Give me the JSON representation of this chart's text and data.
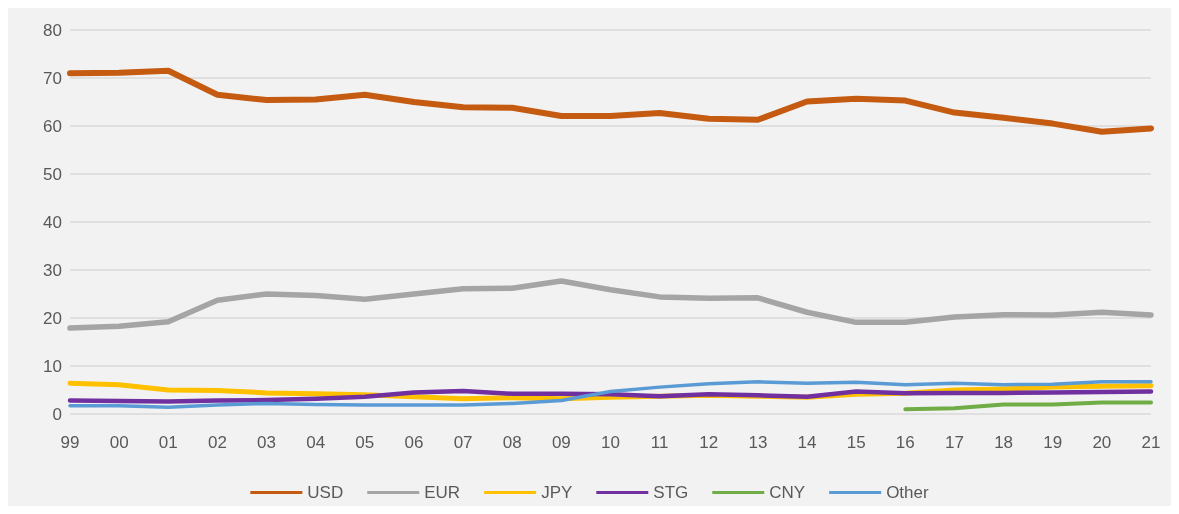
{
  "chart_data": {
    "type": "line",
    "categories": [
      "99",
      "00",
      "01",
      "02",
      "03",
      "04",
      "05",
      "06",
      "07",
      "08",
      "09",
      "10",
      "11",
      "12",
      "13",
      "14",
      "15",
      "16",
      "17",
      "18",
      "19",
      "20",
      "21"
    ],
    "series": [
      {
        "name": "USD",
        "color": "#c55a11",
        "values": [
          71.0,
          71.1,
          71.5,
          66.5,
          65.4,
          65.5,
          66.5,
          65.0,
          63.9,
          63.8,
          62.1,
          62.1,
          62.7,
          61.5,
          61.3,
          65.1,
          65.7,
          65.3,
          62.8,
          61.7,
          60.5,
          58.8,
          59.5
        ]
      },
      {
        "name": "EUR",
        "color": "#a5a5a5",
        "values": [
          17.9,
          18.3,
          19.2,
          23.7,
          25.0,
          24.7,
          23.9,
          25.0,
          26.1,
          26.2,
          27.7,
          25.9,
          24.4,
          24.1,
          24.2,
          21.2,
          19.1,
          19.1,
          20.2,
          20.7,
          20.6,
          21.2,
          20.6
        ]
      },
      {
        "name": "JPY",
        "color": "#ffc000",
        "values": [
          6.4,
          6.1,
          5.0,
          4.9,
          4.4,
          4.2,
          4.0,
          3.6,
          3.2,
          3.4,
          3.2,
          3.5,
          3.7,
          3.9,
          3.7,
          3.5,
          4.1,
          4.3,
          5.0,
          5.2,
          5.6,
          5.8,
          5.9
        ]
      },
      {
        "name": "STG",
        "color": "#7030a0",
        "values": [
          2.8,
          2.7,
          2.6,
          2.8,
          2.9,
          3.2,
          3.6,
          4.5,
          4.8,
          4.2,
          4.2,
          4.1,
          3.7,
          4.1,
          3.9,
          3.6,
          4.7,
          4.3,
          4.4,
          4.4,
          4.5,
          4.6,
          4.7
        ]
      },
      {
        "name": "CNY",
        "color": "#70ad47",
        "values": [
          null,
          null,
          null,
          null,
          null,
          null,
          null,
          null,
          null,
          null,
          null,
          null,
          null,
          null,
          null,
          null,
          null,
          1.0,
          1.2,
          2.0,
          2.0,
          2.4,
          2.4
        ]
      },
      {
        "name": "Other",
        "color": "#5b9bd5",
        "values": [
          1.7,
          1.7,
          1.4,
          1.9,
          2.2,
          2.0,
          1.9,
          1.9,
          1.9,
          2.2,
          2.8,
          4.7,
          5.6,
          6.3,
          6.7,
          6.4,
          6.6,
          6.1,
          6.4,
          6.1,
          6.2,
          6.7,
          6.7
        ]
      }
    ],
    "ylim": [
      0,
      80
    ],
    "yticks": [
      0,
      10,
      20,
      30,
      40,
      50,
      60,
      70,
      80
    ],
    "grid": "y",
    "legend": "bottom",
    "marker": "none",
    "line_style": "solid"
  }
}
